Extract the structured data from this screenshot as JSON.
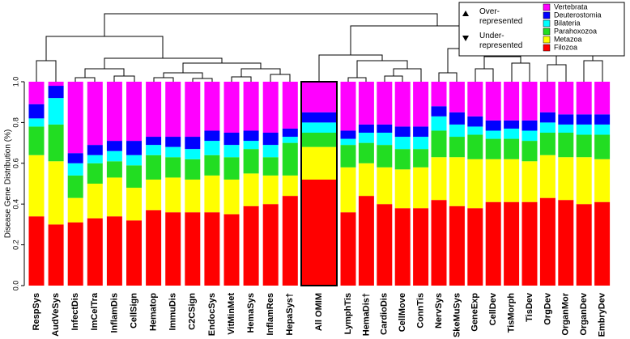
{
  "chart_data": {
    "type": "stacked_bar",
    "y_label": "Disease Gene Distribution (%)",
    "ylim": [
      0,
      1
    ],
    "yticks": [
      {
        "value": 0,
        "label": "0.0"
      },
      0.2,
      0.4,
      0.6,
      0.8,
      {
        "value": 1,
        "label": "1.0"
      }
    ],
    "categories": [
      "RespSys",
      "AudVeSys",
      "InfectDis",
      "ImCelTra",
      "InflamDis",
      "CellSign",
      "Hematop",
      "ImmuDis",
      "C2CSign",
      "EndocSys",
      "VitMinMet",
      "HemaSys",
      "InflamRes",
      "HepaSys†",
      "All OMIM",
      "LymphTis",
      "HemaDis†",
      "CardioDis",
      "CellMove",
      "ConnTis",
      "NervSys",
      "SkeMuSys",
      "GeneExp",
      "CellDev",
      "TisMorph",
      "TisDev",
      "OrgDev",
      "OrganMor",
      "OrganDev",
      "EmbryDev"
    ],
    "series": [
      {
        "name": "Filozoa",
        "color": "#ff0000",
        "values": [
          0.34,
          0.3,
          0.31,
          0.33,
          0.34,
          0.32,
          0.37,
          0.36,
          0.36,
          0.36,
          0.35,
          0.39,
          0.4,
          0.44,
          0.52,
          0.36,
          0.44,
          0.4,
          0.38,
          0.38,
          0.42,
          0.39,
          0.38,
          0.41,
          0.41,
          0.41,
          0.43,
          0.42,
          0.4,
          0.41
        ]
      },
      {
        "name": "Metazoa",
        "color": "#ffff00",
        "values": [
          0.3,
          0.31,
          0.12,
          0.17,
          0.19,
          0.16,
          0.15,
          0.17,
          0.16,
          0.18,
          0.17,
          0.16,
          0.14,
          0.1,
          0.16,
          0.22,
          0.16,
          0.18,
          0.19,
          0.2,
          0.21,
          0.24,
          0.24,
          0.21,
          0.21,
          0.2,
          0.21,
          0.21,
          0.23,
          0.21
        ]
      },
      {
        "name": "Parahoxozoa",
        "color": "#22dd22",
        "values": [
          0.14,
          0.18,
          0.11,
          0.1,
          0.08,
          0.11,
          0.12,
          0.1,
          0.1,
          0.1,
          0.11,
          0.12,
          0.09,
          0.16,
          0.07,
          0.11,
          0.1,
          0.11,
          0.1,
          0.09,
          0.13,
          0.1,
          0.12,
          0.1,
          0.1,
          0.1,
          0.11,
          0.12,
          0.11,
          0.12
        ]
      },
      {
        "name": "Bilateria",
        "color": "#00ffff",
        "values": [
          0.04,
          0.13,
          0.06,
          0.04,
          0.05,
          0.05,
          0.05,
          0.05,
          0.05,
          0.07,
          0.06,
          0.04,
          0.06,
          0.03,
          0.05,
          0.03,
          0.05,
          0.06,
          0.06,
          0.06,
          0.07,
          0.06,
          0.04,
          0.04,
          0.05,
          0.05,
          0.05,
          0.04,
          0.05,
          0.05
        ]
      },
      {
        "name": "Deuterostomia",
        "color": "#0000ff",
        "values": [
          0.07,
          0.06,
          0.05,
          0.05,
          0.05,
          0.07,
          0.04,
          0.05,
          0.06,
          0.05,
          0.06,
          0.05,
          0.06,
          0.04,
          0.05,
          0.04,
          0.04,
          0.04,
          0.05,
          0.05,
          0.05,
          0.06,
          0.05,
          0.05,
          0.04,
          0.05,
          0.05,
          0.05,
          0.05,
          0.05
        ]
      },
      {
        "name": "Vertebrata",
        "color": "#ff00ff",
        "values": [
          0.11,
          0.02,
          0.35,
          0.31,
          0.29,
          0.29,
          0.27,
          0.27,
          0.27,
          0.24,
          0.25,
          0.24,
          0.25,
          0.23,
          0.15,
          0.24,
          0.21,
          0.21,
          0.22,
          0.22,
          0.12,
          0.15,
          0.17,
          0.19,
          0.19,
          0.19,
          0.15,
          0.16,
          0.16,
          0.16
        ]
      }
    ],
    "legend_symbols": [
      "Over-represented",
      "Under-represented"
    ]
  }
}
